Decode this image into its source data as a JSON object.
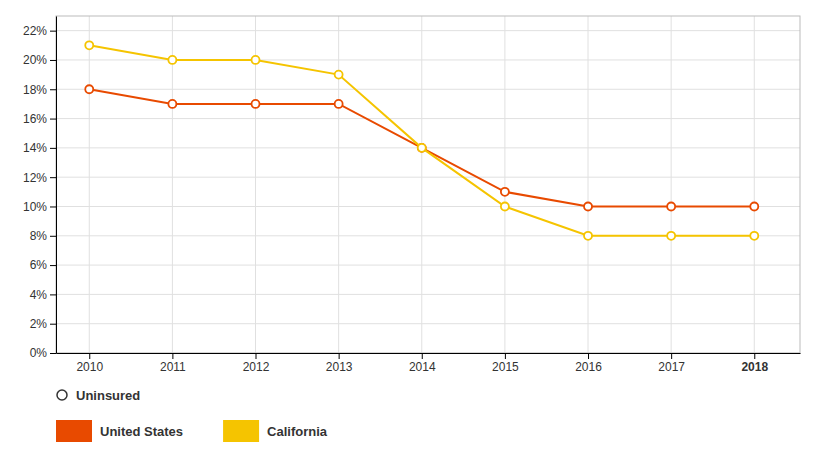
{
  "chart_data": {
    "type": "line",
    "x": [
      2010,
      2011,
      2012,
      2013,
      2014,
      2015,
      2016,
      2017,
      2018
    ],
    "series": [
      {
        "name": "United States",
        "color": "#E84A00",
        "values": [
          0.18,
          0.17,
          0.17,
          0.17,
          0.14,
          0.11,
          0.1,
          0.1,
          0.1
        ]
      },
      {
        "name": "California",
        "color": "#F5C400",
        "values": [
          0.21,
          0.2,
          0.2,
          0.19,
          0.14,
          0.1,
          0.08,
          0.08,
          0.08
        ]
      }
    ],
    "xlim": [
      2009.6,
      2018.55
    ],
    "xticks": [
      2010,
      2011,
      2012,
      2013,
      2014,
      2015,
      2016,
      2017,
      2018
    ],
    "ylim": [
      0,
      0.23
    ],
    "yticks": [
      {
        "value": 0.0,
        "label": "0%"
      },
      {
        "value": 0.02,
        "label": "2%"
      },
      {
        "value": 0.04,
        "label": "4%"
      },
      {
        "value": 0.06,
        "label": "6%"
      },
      {
        "value": 0.08,
        "label": "8%"
      },
      {
        "value": 0.1,
        "label": "10%"
      },
      {
        "value": 0.12,
        "label": "12%"
      },
      {
        "value": 0.14,
        "label": "14%"
      },
      {
        "value": 0.16,
        "label": "16%"
      },
      {
        "value": 0.18,
        "label": "18%"
      },
      {
        "value": 0.2,
        "label": "20%"
      },
      {
        "value": 0.22,
        "label": "22%"
      }
    ],
    "grid": true,
    "marker": "circle",
    "legend": "bottom",
    "annotations": [
      "Uninsured"
    ]
  }
}
